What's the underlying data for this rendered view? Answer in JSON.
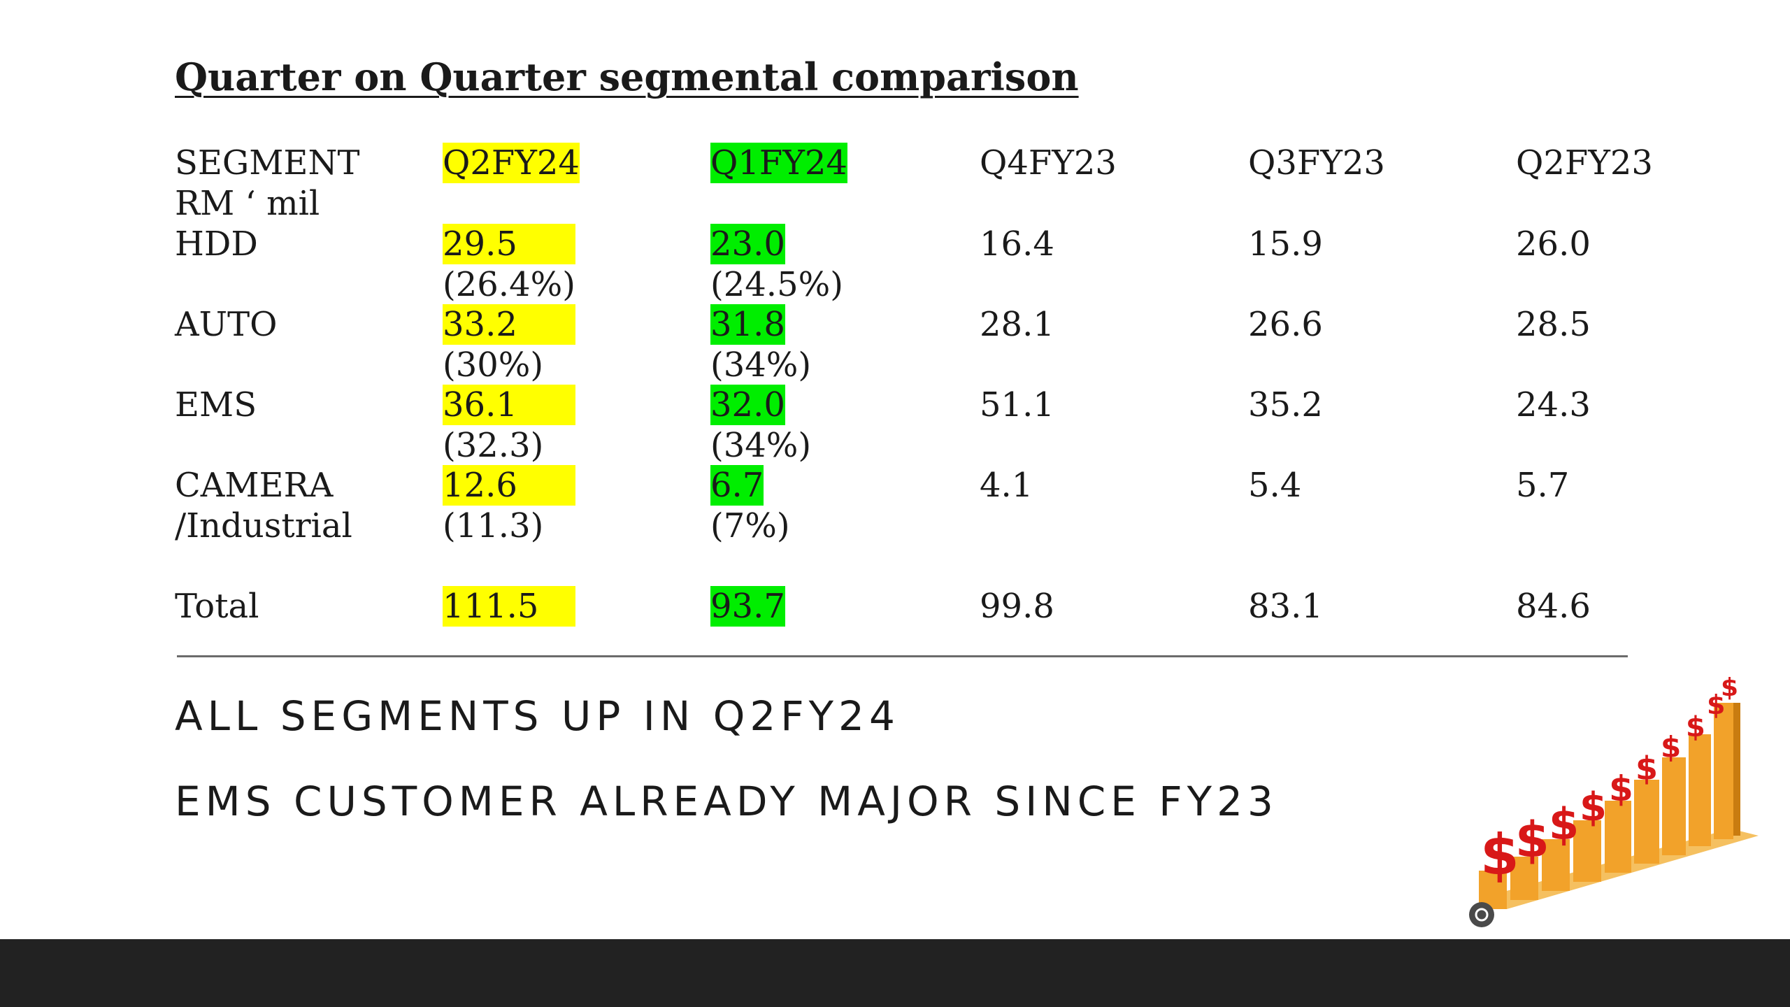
{
  "slide": {
    "title": "Quarter on Quarter segmental comparison",
    "table": {
      "header": {
        "label_line1": "SEGMENT",
        "label_line2": "RM ‘ mil",
        "columns": [
          "Q2FY24",
          "Q1FY24",
          "Q4FY23",
          "Q3FY23",
          "Q2FY23"
        ]
      },
      "rows": [
        {
          "name_line1": "HDD",
          "name_line2": "",
          "values": [
            "29.5",
            "23.0",
            "16.4",
            "15.9",
            "26.0"
          ],
          "shares": [
            "(26.4%)",
            "(24.5%)"
          ]
        },
        {
          "name_line1": "AUTO",
          "name_line2": "",
          "values": [
            "33.2",
            "31.8",
            "28.1",
            "26.6",
            "28.5"
          ],
          "shares": [
            "(30%)",
            "(34%)"
          ]
        },
        {
          "name_line1": "EMS",
          "name_line2": "",
          "values": [
            "36.1",
            "32.0",
            "51.1",
            "35.2",
            "24.3"
          ],
          "shares": [
            "(32.3)",
            "(34%)"
          ]
        },
        {
          "name_line1": "CAMERA",
          "name_line2": "/Industrial",
          "values": [
            "12.6",
            "6.7",
            "4.1",
            "5.4",
            "5.7"
          ],
          "shares": [
            "(11.3)",
            "(7%)"
          ]
        }
      ],
      "total": {
        "label": "Total",
        "values": [
          "111.5",
          "93.7",
          "99.8",
          "83.1",
          "84.6"
        ]
      }
    },
    "notes": [
      "ALL SEGMENTS UP IN Q2FY24",
      "EMS CUSTOMER ALREADY MAJOR SINCE FY23"
    ],
    "colors": {
      "highlight_q2fy24": "#ffff00",
      "highlight_q1fy24": "#00ee00",
      "bottom_bar": "#222222",
      "bar_orange": "#f2a22a",
      "dollar_red": "#d81818"
    }
  }
}
